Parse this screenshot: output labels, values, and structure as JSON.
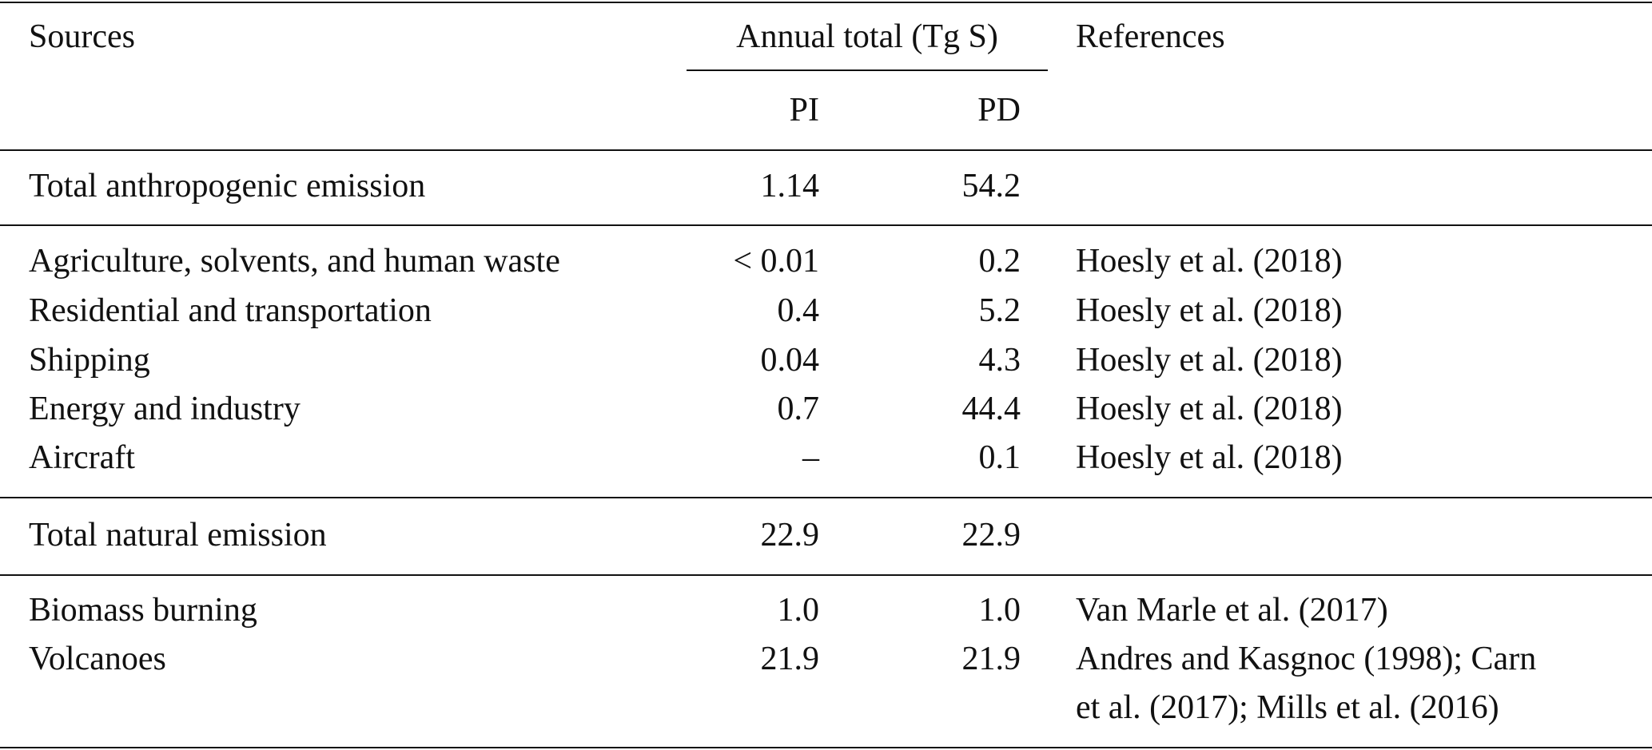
{
  "header": {
    "sources": "Sources",
    "annual_total": "Annual total (Tg S)",
    "references": "References",
    "pi": "PI",
    "pd": "PD"
  },
  "rows": [
    {
      "source": "Total anthropogenic emission",
      "pi": "1.14",
      "pd": "54.2",
      "ref": ""
    },
    {
      "source": "Agriculture, solvents, and human waste",
      "pi": "< 0.01",
      "pd": "0.2",
      "ref": "Hoesly et al. (2018)"
    },
    {
      "source": "Residential and transportation",
      "pi": "0.4",
      "pd": "5.2",
      "ref": "Hoesly et al. (2018)"
    },
    {
      "source": "Shipping",
      "pi": "0.04",
      "pd": "4.3",
      "ref": "Hoesly et al. (2018)"
    },
    {
      "source": "Energy and industry",
      "pi": "0.7",
      "pd": "44.4",
      "ref": "Hoesly et al. (2018)"
    },
    {
      "source": "Aircraft",
      "pi": "–",
      "pd": "0.1",
      "ref": "Hoesly et al. (2018)"
    },
    {
      "source": "Total natural emission",
      "pi": "22.9",
      "pd": "22.9",
      "ref": ""
    },
    {
      "source": "Biomass burning",
      "pi": "1.0",
      "pd": "1.0",
      "ref": "Van Marle et al. (2017)"
    },
    {
      "source": "Volcanoes",
      "pi": "21.9",
      "pd": "21.9",
      "ref": "Andres and Kasgnoc (1998); Carn",
      "ref_cont": "et al. (2017); Mills et al. (2016)"
    }
  ]
}
